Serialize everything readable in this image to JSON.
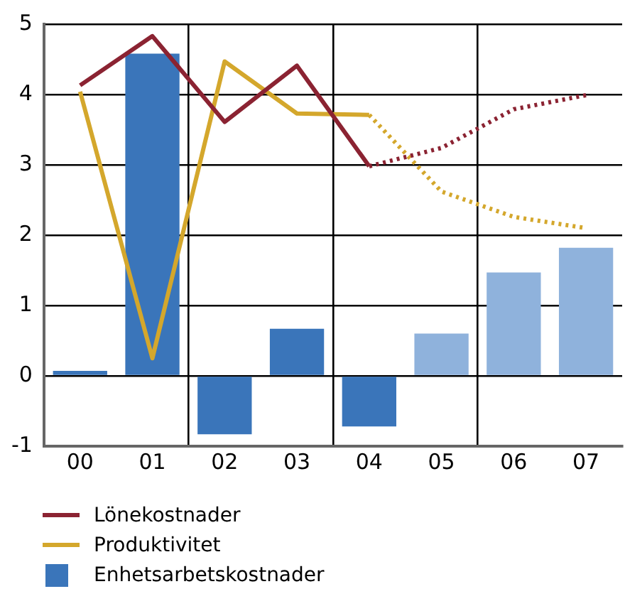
{
  "chart_data": {
    "type": "bar",
    "categories": [
      "00",
      "01",
      "02",
      "03",
      "04",
      "05",
      "06",
      "07"
    ],
    "series": [
      {
        "name": "Enhetsarbetskostnader",
        "color": "#3a75ba",
        "colors": [
          "#3a75ba",
          "#3a75ba",
          "#3a75ba",
          "#3a75ba",
          "#3a75ba",
          "#8fb2dc",
          "#8fb2dc",
          "#8fb2dc"
        ],
        "values": [
          0.07,
          4.58,
          -0.83,
          0.67,
          -0.72,
          0.6,
          1.47,
          1.82
        ]
      },
      {
        "name": "Lönekostnader",
        "type": "line",
        "color": "#8b2332",
        "line_style": "solid",
        "values": [
          4.13,
          4.83,
          3.61,
          4.41,
          2.98,
          null,
          null,
          null
        ]
      },
      {
        "type": "line",
        "color": "#8b2332",
        "line_style": "dotted",
        "values": [
          null,
          null,
          null,
          null,
          2.98,
          3.24,
          3.79,
          3.99
        ]
      },
      {
        "name": "Produktivitet",
        "type": "line",
        "color": "#d4a72c",
        "line_style": "solid",
        "values": [
          4.04,
          0.25,
          4.47,
          3.73,
          3.71,
          null,
          null,
          null
        ]
      },
      {
        "type": "line",
        "color": "#d4a72c",
        "line_style": "dotted",
        "values": [
          null,
          null,
          null,
          null,
          3.71,
          2.62,
          2.26,
          2.1
        ]
      }
    ],
    "ylim": [
      -1,
      5
    ],
    "yticks": [
      -1,
      0,
      1,
      2,
      3,
      4,
      5
    ],
    "grid": true,
    "legend": "bottom",
    "marker": "none"
  }
}
